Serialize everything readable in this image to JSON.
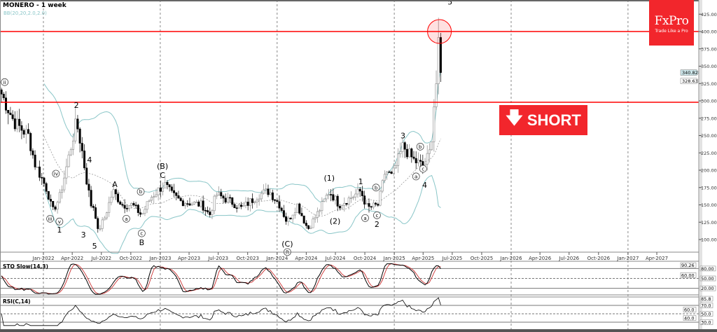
{
  "header": {
    "title": "MONERO - 1 week",
    "bb_label": "BB(20,20,2.0,2.0)"
  },
  "logo": {
    "brand": "FxPro",
    "tagline": "Trade Like a Pro",
    "color": "#f2262c"
  },
  "signal": {
    "label": "SHORT",
    "icon": "arrow-down-icon",
    "color": "#f2262c"
  },
  "indicators": {
    "sto_label": "STO Slow(14,3)",
    "rsi_label": "RSI(C,14)"
  },
  "chart_data": [
    {
      "type": "candlestick",
      "title": "MONERO - 1 week",
      "ylim": [
        80,
        435
      ],
      "yticks": [
        100,
        125,
        150,
        175,
        200,
        225,
        250,
        275,
        300,
        325,
        350,
        375,
        400,
        425
      ],
      "ytick_labels": [
        "100.00",
        "125.00",
        "150.00",
        "175.00",
        "200.00",
        "225.00",
        "250.00",
        "275.00",
        "300.00",
        "325.00",
        "350.00",
        "375.00",
        "400.00",
        "425.00"
      ],
      "xticks": [
        "2022-01-01",
        "2022-04-01",
        "2022-07-01",
        "2022-10-01",
        "2023-01-01",
        "2023-04-01",
        "2023-07-01",
        "2023-10-01",
        "2024-01-01",
        "2024-04-01",
        "2024-07-01",
        "2024-10-01",
        "2025-01-01",
        "2025-04-01",
        "2025-07-01",
        "2025-10-01",
        "2026-01-01",
        "2026-04-01",
        "2026-07-01",
        "2026-10-01",
        "2027-01-01",
        "2027-04-01"
      ],
      "xtick_labels": [
        "Jan-2022",
        "Apr-2022",
        "Jul-2022",
        "Oct-2022",
        "Jan-2023",
        "Apr-2023",
        "Jul-2023",
        "Oct-2023",
        "Jan-2024",
        "Apr-2024",
        "Jul-2024",
        "Oct-2024",
        "Jan-2025",
        "Apr-2025",
        "Jul-2025",
        "Oct-2025",
        "Jan-2026",
        "Apr-2026",
        "Jul-2026",
        "Oct-2026",
        "Jan-2027",
        "Apr-2027"
      ],
      "year_separators": [
        "2022-01-01",
        "2023-01-01",
        "2024-01-01",
        "2025-01-01",
        "2026-01-01",
        "2027-01-01"
      ],
      "price_path": [
        [
          "2021-08-23",
          310
        ],
        [
          "2021-10-01",
          270
        ],
        [
          "2021-11-15",
          250
        ],
        [
          "2021-12-05",
          210
        ],
        [
          "2022-01-14",
          170
        ],
        [
          "2022-01-29",
          140
        ],
        [
          "2022-02-20",
          160
        ],
        [
          "2022-03-12",
          200
        ],
        [
          "2022-04-14",
          270
        ],
        [
          "2022-05-01",
          230
        ],
        [
          "2022-05-16",
          185
        ],
        [
          "2022-06-01",
          145
        ],
        [
          "2022-06-10",
          150
        ],
        [
          "2022-06-18",
          110
        ],
        [
          "2022-07-10",
          130
        ],
        [
          "2022-08-06",
          170
        ],
        [
          "2022-09-04",
          150
        ],
        [
          "2022-10-06",
          150
        ],
        [
          "2022-11-04",
          135
        ],
        [
          "2022-12-01",
          160
        ],
        [
          "2023-01-14",
          180
        ],
        [
          "2023-02-06",
          165
        ],
        [
          "2023-03-07",
          155
        ],
        [
          "2023-05-12",
          150
        ],
        [
          "2023-06-04",
          135
        ],
        [
          "2023-06-25",
          165
        ],
        [
          "2023-08-09",
          155
        ],
        [
          "2023-09-12",
          145
        ],
        [
          "2023-11-06",
          165
        ],
        [
          "2023-12-07",
          170
        ],
        [
          "2024-01-09",
          150
        ],
        [
          "2024-02-01",
          125
        ],
        [
          "2024-03-04",
          150
        ],
        [
          "2024-04-06",
          115
        ],
        [
          "2024-05-09",
          140
        ],
        [
          "2024-06-12",
          170
        ],
        [
          "2024-07-13",
          150
        ],
        [
          "2024-08-16",
          160
        ],
        [
          "2024-09-18",
          170
        ],
        [
          "2024-10-09",
          145
        ],
        [
          "2024-11-12",
          150
        ],
        [
          "2024-12-04",
          200
        ],
        [
          "2024-12-25",
          190
        ],
        [
          "2025-01-28",
          235
        ],
        [
          "2025-03-01",
          215
        ],
        [
          "2025-04-03",
          205
        ],
        [
          "2025-04-25",
          230
        ],
        [
          "2025-05-04",
          290
        ],
        [
          "2025-05-13",
          330
        ],
        [
          "2025-05-22",
          400
        ],
        [
          "2025-05-28",
          330
        ]
      ],
      "spike_high": 420,
      "horizontal_levels": [
        {
          "value": 400,
          "color": "#ff0000"
        },
        {
          "value": 298,
          "color": "#ff0000"
        }
      ],
      "highlight_circle": {
        "date": "2025-05-22",
        "price": 400,
        "color": "#ff0000"
      },
      "last_price_labels": [
        "340.82",
        "328.63"
      ],
      "last_prices": [
        340.82,
        328.63
      ],
      "bollinger": {
        "period": 20,
        "deviation": 2.0,
        "color": "#8ac6c8"
      },
      "wave_labels": [
        {
          "text": "ii",
          "circled": true,
          "date": "2021-09-02",
          "price": 327
        },
        {
          "text": "2",
          "circled": false,
          "date": "2022-04-14",
          "price": 294
        },
        {
          "text": "iv",
          "circled": true,
          "date": "2022-02-09",
          "price": 195
        },
        {
          "text": "4",
          "circled": false,
          "date": "2022-05-25",
          "price": 215
        },
        {
          "text": "iii",
          "circled": true,
          "date": "2022-01-22",
          "price": 130
        },
        {
          "text": "v",
          "circled": true,
          "date": "2022-02-20",
          "price": 126
        },
        {
          "text": "1",
          "circled": false,
          "date": "2022-02-20",
          "price": 114
        },
        {
          "text": "3",
          "circled": false,
          "date": "2022-05-06",
          "price": 107
        },
        {
          "text": "5",
          "circled": false,
          "date": "2022-06-10",
          "price": 91
        },
        {
          "text": "A",
          "circled": false,
          "date": "2022-08-12",
          "price": 180
        },
        {
          "text": "b",
          "circled": true,
          "date": "2022-11-01",
          "price": 169
        },
        {
          "text": "a",
          "circled": true,
          "date": "2022-09-17",
          "price": 130
        },
        {
          "text": "c",
          "circled": true,
          "date": "2022-11-04",
          "price": 109
        },
        {
          "text": "B",
          "circled": false,
          "date": "2022-11-04",
          "price": 96
        },
        {
          "text": "(B)",
          "circled": false,
          "date": "2023-01-08",
          "price": 206
        },
        {
          "text": "C",
          "circled": false,
          "date": "2023-01-08",
          "price": 193
        },
        {
          "text": "(C)",
          "circled": false,
          "date": "2024-02-02",
          "price": 94
        },
        {
          "text": "R",
          "circled": true,
          "date": "2024-02-02",
          "price": 82
        },
        {
          "text": "(1)",
          "circled": false,
          "date": "2024-06-12",
          "price": 189
        },
        {
          "text": "(2)",
          "circled": false,
          "date": "2024-06-30",
          "price": 127
        },
        {
          "text": "1",
          "circled": false,
          "date": "2024-09-18",
          "price": 184
        },
        {
          "text": "b",
          "circled": true,
          "date": "2024-11-05",
          "price": 175
        },
        {
          "text": "a",
          "circled": true,
          "date": "2024-10-02",
          "price": 131
        },
        {
          "text": "c",
          "circled": true,
          "date": "2024-11-08",
          "price": 135
        },
        {
          "text": "2",
          "circled": false,
          "date": "2024-11-08",
          "price": 122
        },
        {
          "text": "3",
          "circled": false,
          "date": "2025-01-28",
          "price": 250
        },
        {
          "text": "b",
          "circled": true,
          "date": "2025-03-23",
          "price": 234
        },
        {
          "text": "c",
          "circled": true,
          "date": "2025-04-01",
          "price": 202
        },
        {
          "text": "a",
          "circled": true,
          "date": "2025-03-10",
          "price": 191
        },
        {
          "text": "4",
          "circled": false,
          "date": "2025-04-06",
          "price": 179
        },
        {
          "text": "5",
          "circled": false,
          "date": "2025-06-24",
          "price": 443
        }
      ]
    },
    {
      "type": "line",
      "title": "STO Slow(14,3)",
      "ylim": [
        0,
        100
      ],
      "levels": [
        80,
        50,
        20
      ],
      "ytick_labels": [
        "90.26",
        "80.00",
        "60.00",
        "50.00",
        "20.00"
      ],
      "series": [
        {
          "name": "%K",
          "color": "#000000"
        },
        {
          "name": "%D",
          "color": "#cc3333"
        }
      ]
    },
    {
      "type": "line",
      "title": "RSI(C,14)",
      "ylim": [
        20,
        88
      ],
      "levels": [
        70,
        50,
        30
      ],
      "ytick_labels": [
        "85.8",
        "70.0",
        "60.0",
        "50.0",
        "40.0",
        "30.0"
      ],
      "series": [
        {
          "color": "#000000"
        }
      ]
    }
  ]
}
